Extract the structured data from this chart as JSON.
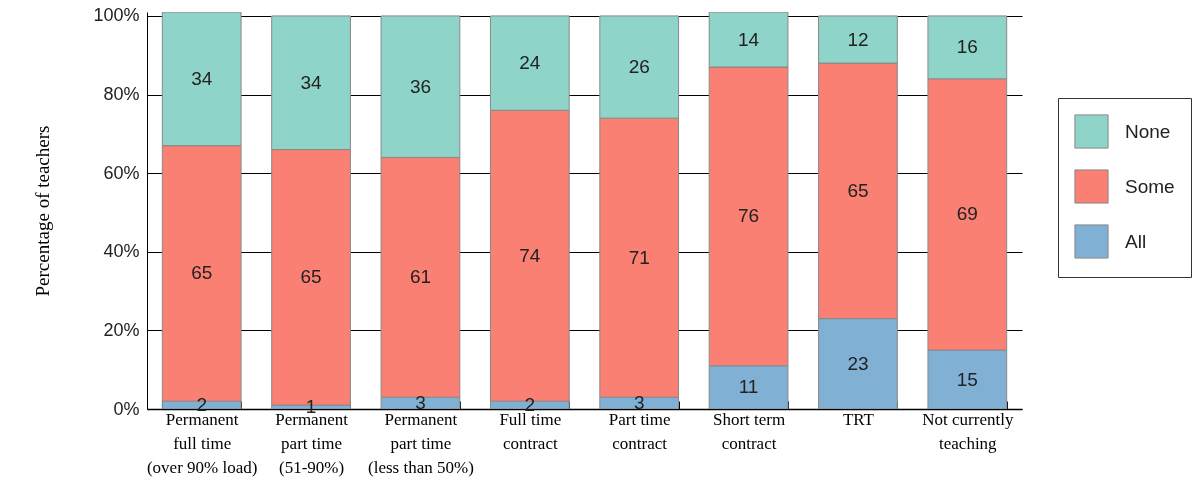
{
  "chart_data": {
    "type": "bar",
    "stacked": true,
    "ylabel": "Percentage of teachers",
    "categories": [
      "Permanent\nfull time\n(over 90% load)",
      "Permanent\npart time\n(51-90%)",
      "Permanent\npart time\n(less than 50%)",
      "Full time\ncontract",
      "Part time\ncontract",
      "Short term\ncontract",
      "TRT",
      "Not currently\nteaching"
    ],
    "series": [
      {
        "name": "All",
        "color": "#80b1d4",
        "values": [
          2,
          1,
          3,
          2,
          3,
          11,
          23,
          15
        ]
      },
      {
        "name": "Some",
        "color": "#f98072",
        "values": [
          65,
          65,
          61,
          74,
          71,
          76,
          65,
          69
        ]
      },
      {
        "name": "None",
        "color": "#8fd4c8",
        "values": [
          34,
          34,
          36,
          24,
          26,
          14,
          12,
          16
        ]
      }
    ],
    "ylim": [
      0,
      101
    ],
    "yticks": [
      {
        "value": 0,
        "label": "0%"
      },
      {
        "value": 20,
        "label": "20%"
      },
      {
        "value": 40,
        "label": "40%"
      },
      {
        "value": 60,
        "label": "60%"
      },
      {
        "value": 80,
        "label": "80%"
      },
      {
        "value": 100,
        "label": "100%"
      }
    ],
    "grid": "y",
    "legend": "right",
    "data_labels": true
  }
}
